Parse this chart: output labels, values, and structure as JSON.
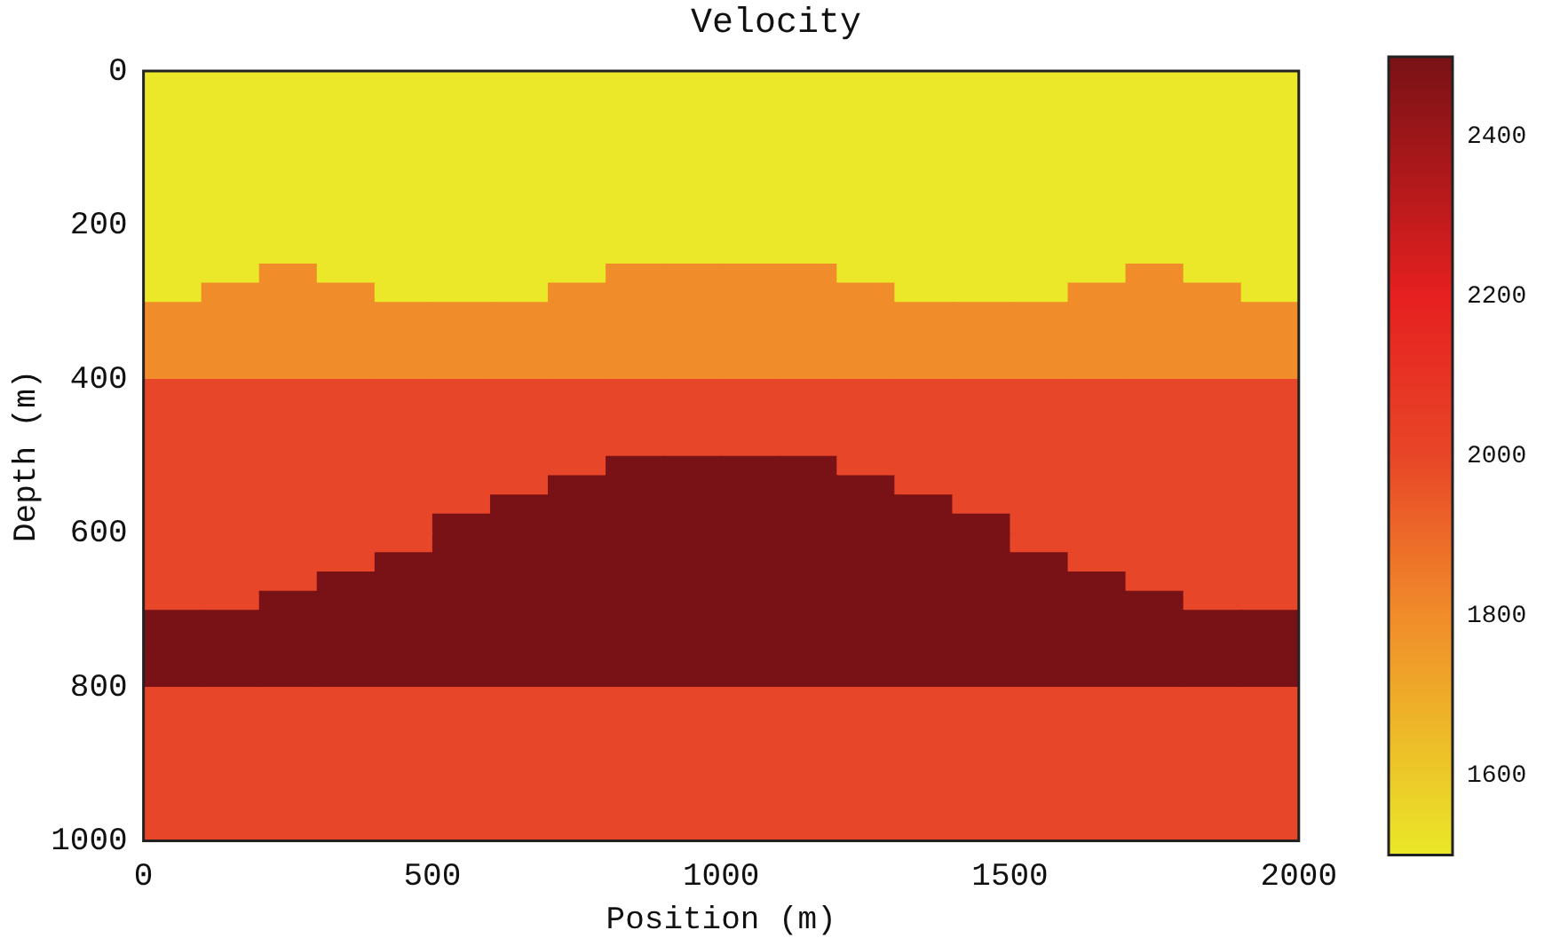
{
  "chart_data": {
    "type": "heatmap",
    "title": "Velocity",
    "xlabel": "Position (m)",
    "ylabel": "Depth (m)",
    "x": [
      50,
      150,
      250,
      350,
      450,
      550,
      650,
      750,
      850,
      950,
      1050,
      1150,
      1250,
      1350,
      1450,
      1550,
      1650,
      1750,
      1850,
      1950
    ],
    "y": [
      12.5,
      37.5,
      62.5,
      87.5,
      112.5,
      137.5,
      162.5,
      187.5,
      212.5,
      237.5,
      262.5,
      287.5,
      312.5,
      337.5,
      362.5,
      387.5,
      412.5,
      437.5,
      462.5,
      487.5,
      512.5,
      537.5,
      562.5,
      587.5,
      612.5,
      637.5,
      662.5,
      687.5,
      712.5,
      737.5,
      762.5,
      787.5,
      812.5,
      837.5,
      862.5,
      887.5,
      912.5,
      937.5,
      962.5,
      987.5
    ],
    "xlim": [
      0,
      2000
    ],
    "xticks": [
      0,
      500,
      1000,
      1500,
      2000
    ],
    "ylim": [
      1000,
      0
    ],
    "yticks": [
      0,
      200,
      400,
      600,
      800,
      1000
    ],
    "clim": [
      1500,
      2500
    ],
    "cticks": [
      1600,
      1800,
      2000,
      2200,
      2400
    ],
    "cells": [
      [
        1500,
        1500,
        1500,
        1500,
        1500,
        1500,
        1500,
        1500,
        1500,
        1500,
        1500,
        1500,
        1500,
        1500,
        1500,
        1500,
        1500,
        1500,
        1500,
        1500
      ],
      [
        1500,
        1500,
        1500,
        1500,
        1500,
        1500,
        1500,
        1500,
        1500,
        1500,
        1500,
        1500,
        1500,
        1500,
        1500,
        1500,
        1500,
        1500,
        1500,
        1500
      ],
      [
        1500,
        1500,
        1500,
        1500,
        1500,
        1500,
        1500,
        1500,
        1500,
        1500,
        1500,
        1500,
        1500,
        1500,
        1500,
        1500,
        1500,
        1500,
        1500,
        1500
      ],
      [
        1500,
        1500,
        1500,
        1500,
        1500,
        1500,
        1500,
        1500,
        1500,
        1500,
        1500,
        1500,
        1500,
        1500,
        1500,
        1500,
        1500,
        1500,
        1500,
        1500
      ],
      [
        1500,
        1500,
        1500,
        1500,
        1500,
        1500,
        1500,
        1500,
        1500,
        1500,
        1500,
        1500,
        1500,
        1500,
        1500,
        1500,
        1500,
        1500,
        1500,
        1500
      ],
      [
        1500,
        1500,
        1500,
        1500,
        1500,
        1500,
        1500,
        1500,
        1500,
        1500,
        1500,
        1500,
        1500,
        1500,
        1500,
        1500,
        1500,
        1500,
        1500,
        1500
      ],
      [
        1500,
        1500,
        1500,
        1500,
        1500,
        1500,
        1500,
        1500,
        1500,
        1500,
        1500,
        1500,
        1500,
        1500,
        1500,
        1500,
        1500,
        1500,
        1500,
        1500
      ],
      [
        1500,
        1500,
        1500,
        1500,
        1500,
        1500,
        1500,
        1500,
        1500,
        1500,
        1500,
        1500,
        1500,
        1500,
        1500,
        1500,
        1500,
        1500,
        1500,
        1500
      ],
      [
        1500,
        1500,
        1500,
        1500,
        1500,
        1500,
        1500,
        1500,
        1500,
        1500,
        1500,
        1500,
        1500,
        1500,
        1500,
        1500,
        1500,
        1500,
        1500,
        1500
      ],
      [
        1500,
        1500,
        1500,
        1500,
        1500,
        1500,
        1500,
        1500,
        1500,
        1500,
        1500,
        1500,
        1500,
        1500,
        1500,
        1500,
        1500,
        1500,
        1500,
        1500
      ],
      [
        1500,
        1500,
        1800,
        1500,
        1500,
        1500,
        1500,
        1500,
        1800,
        1800,
        1800,
        1800,
        1500,
        1500,
        1500,
        1500,
        1500,
        1800,
        1500,
        1500
      ],
      [
        1500,
        1800,
        1800,
        1800,
        1500,
        1500,
        1500,
        1800,
        1800,
        1800,
        1800,
        1800,
        1800,
        1500,
        1500,
        1500,
        1800,
        1800,
        1800,
        1500
      ],
      [
        1800,
        1800,
        1800,
        1800,
        1800,
        1800,
        1800,
        1800,
        1800,
        1800,
        1800,
        1800,
        1800,
        1800,
        1800,
        1800,
        1800,
        1800,
        1800,
        1800
      ],
      [
        1800,
        1800,
        1800,
        1800,
        1800,
        1800,
        1800,
        1800,
        1800,
        1800,
        1800,
        1800,
        1800,
        1800,
        1800,
        1800,
        1800,
        1800,
        1800,
        1800
      ],
      [
        1800,
        1800,
        1800,
        1800,
        1800,
        1800,
        1800,
        1800,
        1800,
        1800,
        1800,
        1800,
        1800,
        1800,
        1800,
        1800,
        1800,
        1800,
        1800,
        1800
      ],
      [
        1800,
        1800,
        1800,
        1800,
        1800,
        1800,
        1800,
        1800,
        1800,
        1800,
        1800,
        1800,
        1800,
        1800,
        1800,
        1800,
        1800,
        1800,
        1800,
        1800
      ],
      [
        2000,
        2000,
        2000,
        2000,
        2000,
        2000,
        2000,
        2000,
        2000,
        2000,
        2000,
        2000,
        2000,
        2000,
        2000,
        2000,
        2000,
        2000,
        2000,
        2000
      ],
      [
        2000,
        2000,
        2000,
        2000,
        2000,
        2000,
        2000,
        2000,
        2000,
        2000,
        2000,
        2000,
        2000,
        2000,
        2000,
        2000,
        2000,
        2000,
        2000,
        2000
      ],
      [
        2000,
        2000,
        2000,
        2000,
        2000,
        2000,
        2000,
        2000,
        2000,
        2000,
        2000,
        2000,
        2000,
        2000,
        2000,
        2000,
        2000,
        2000,
        2000,
        2000
      ],
      [
        2000,
        2000,
        2000,
        2000,
        2000,
        2000,
        2000,
        2000,
        2000,
        2000,
        2000,
        2000,
        2000,
        2000,
        2000,
        2000,
        2000,
        2000,
        2000,
        2000
      ],
      [
        2000,
        2000,
        2000,
        2000,
        2000,
        2000,
        2000,
        2000,
        2500,
        2500,
        2500,
        2500,
        2000,
        2000,
        2000,
        2000,
        2000,
        2000,
        2000,
        2000
      ],
      [
        2000,
        2000,
        2000,
        2000,
        2000,
        2000,
        2000,
        2500,
        2500,
        2500,
        2500,
        2500,
        2500,
        2000,
        2000,
        2000,
        2000,
        2000,
        2000,
        2000
      ],
      [
        2000,
        2000,
        2000,
        2000,
        2000,
        2000,
        2500,
        2500,
        2500,
        2500,
        2500,
        2500,
        2500,
        2500,
        2000,
        2000,
        2000,
        2000,
        2000,
        2000
      ],
      [
        2000,
        2000,
        2000,
        2000,
        2000,
        2500,
        2500,
        2500,
        2500,
        2500,
        2500,
        2500,
        2500,
        2500,
        2500,
        2000,
        2000,
        2000,
        2000,
        2000
      ],
      [
        2000,
        2000,
        2000,
        2000,
        2000,
        2500,
        2500,
        2500,
        2500,
        2500,
        2500,
        2500,
        2500,
        2500,
        2500,
        2000,
        2000,
        2000,
        2000,
        2000
      ],
      [
        2000,
        2000,
        2000,
        2000,
        2500,
        2500,
        2500,
        2500,
        2500,
        2500,
        2500,
        2500,
        2500,
        2500,
        2500,
        2500,
        2000,
        2000,
        2000,
        2000
      ],
      [
        2000,
        2000,
        2000,
        2500,
        2500,
        2500,
        2500,
        2500,
        2500,
        2500,
        2500,
        2500,
        2500,
        2500,
        2500,
        2500,
        2500,
        2000,
        2000,
        2000
      ],
      [
        2000,
        2000,
        2500,
        2500,
        2500,
        2500,
        2500,
        2500,
        2500,
        2500,
        2500,
        2500,
        2500,
        2500,
        2500,
        2500,
        2500,
        2500,
        2000,
        2000
      ],
      [
        2500,
        2500,
        2500,
        2500,
        2500,
        2500,
        2500,
        2500,
        2500,
        2500,
        2500,
        2500,
        2500,
        2500,
        2500,
        2500,
        2500,
        2500,
        2500,
        2500
      ],
      [
        2500,
        2500,
        2500,
        2500,
        2500,
        2500,
        2500,
        2500,
        2500,
        2500,
        2500,
        2500,
        2500,
        2500,
        2500,
        2500,
        2500,
        2500,
        2500,
        2500
      ],
      [
        2500,
        2500,
        2500,
        2500,
        2500,
        2500,
        2500,
        2500,
        2500,
        2500,
        2500,
        2500,
        2500,
        2500,
        2500,
        2500,
        2500,
        2500,
        2500,
        2500
      ],
      [
        2500,
        2500,
        2500,
        2500,
        2500,
        2500,
        2500,
        2500,
        2500,
        2500,
        2500,
        2500,
        2500,
        2500,
        2500,
        2500,
        2500,
        2500,
        2500,
        2500
      ],
      [
        2000,
        2000,
        2000,
        2000,
        2000,
        2000,
        2000,
        2000,
        2000,
        2000,
        2000,
        2000,
        2000,
        2000,
        2000,
        2000,
        2000,
        2000,
        2000,
        2000
      ],
      [
        2000,
        2000,
        2000,
        2000,
        2000,
        2000,
        2000,
        2000,
        2000,
        2000,
        2000,
        2000,
        2000,
        2000,
        2000,
        2000,
        2000,
        2000,
        2000,
        2000
      ],
      [
        2000,
        2000,
        2000,
        2000,
        2000,
        2000,
        2000,
        2000,
        2000,
        2000,
        2000,
        2000,
        2000,
        2000,
        2000,
        2000,
        2000,
        2000,
        2000,
        2000
      ],
      [
        2000,
        2000,
        2000,
        2000,
        2000,
        2000,
        2000,
        2000,
        2000,
        2000,
        2000,
        2000,
        2000,
        2000,
        2000,
        2000,
        2000,
        2000,
        2000,
        2000
      ],
      [
        2000,
        2000,
        2000,
        2000,
        2000,
        2000,
        2000,
        2000,
        2000,
        2000,
        2000,
        2000,
        2000,
        2000,
        2000,
        2000,
        2000,
        2000,
        2000,
        2000
      ],
      [
        2000,
        2000,
        2000,
        2000,
        2000,
        2000,
        2000,
        2000,
        2000,
        2000,
        2000,
        2000,
        2000,
        2000,
        2000,
        2000,
        2000,
        2000,
        2000,
        2000
      ],
      [
        2000,
        2000,
        2000,
        2000,
        2000,
        2000,
        2000,
        2000,
        2000,
        2000,
        2000,
        2000,
        2000,
        2000,
        2000,
        2000,
        2000,
        2000,
        2000,
        2000
      ],
      [
        2000,
        2000,
        2000,
        2000,
        2000,
        2000,
        2000,
        2000,
        2000,
        2000,
        2000,
        2000,
        2000,
        2000,
        2000,
        2000,
        2000,
        2000,
        2000,
        2000
      ]
    ]
  }
}
